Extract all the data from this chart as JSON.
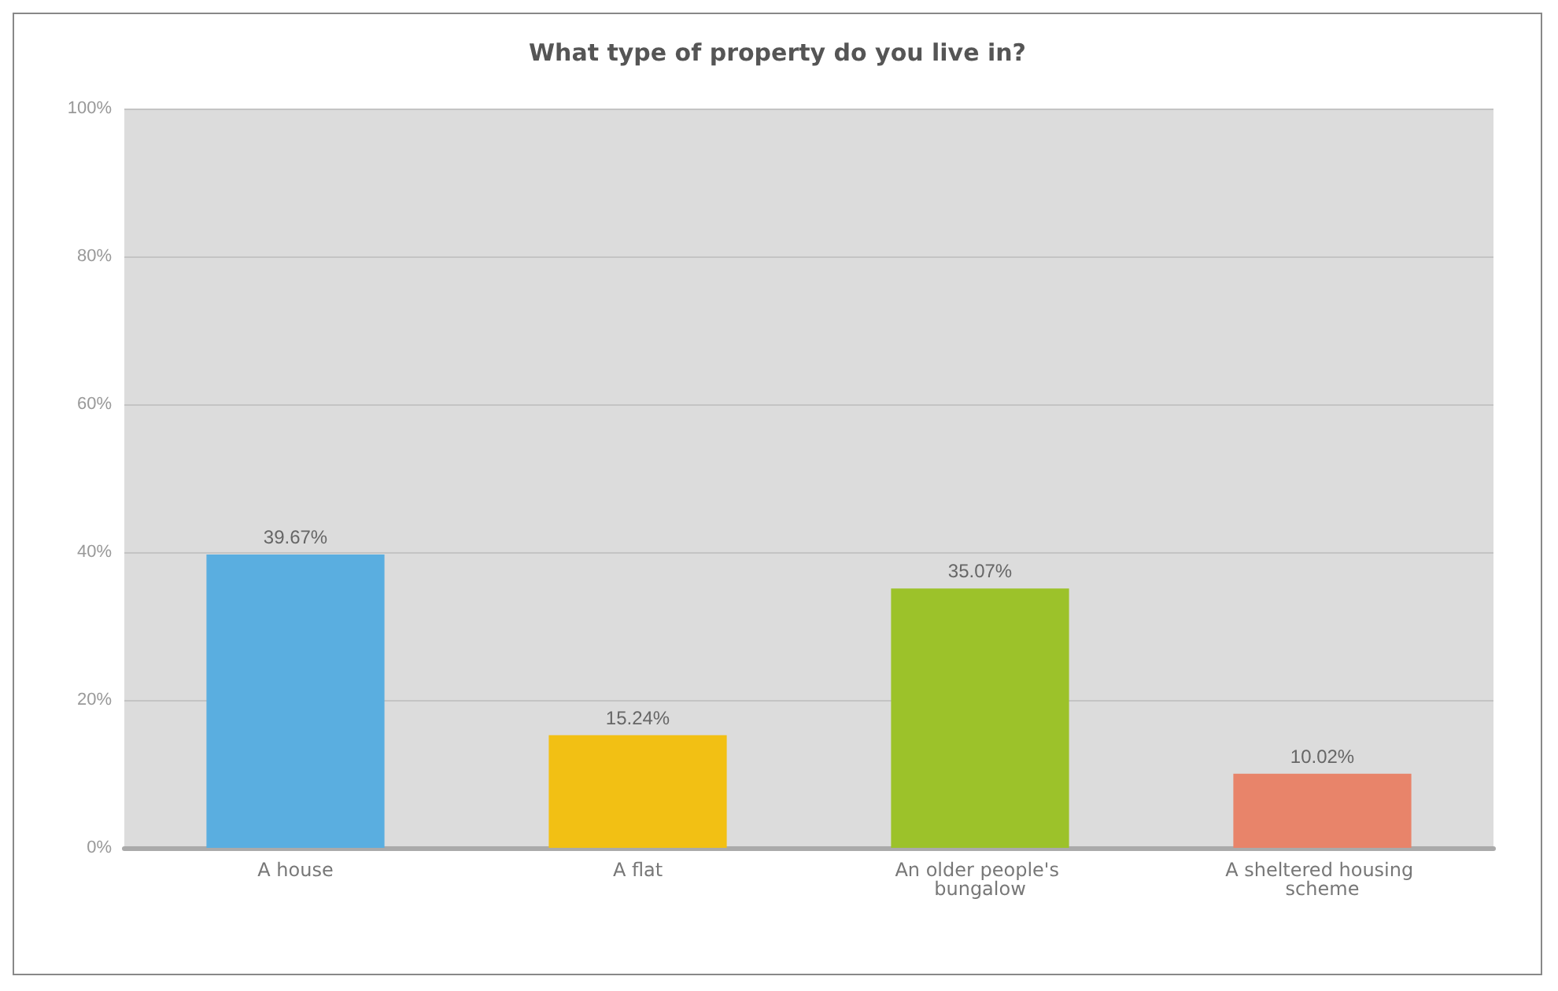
{
  "chart_data": {
    "type": "bar",
    "title": "What type of property do you live in?",
    "categories": [
      "A house",
      "A flat",
      "An older people's bungalow",
      "A sheltered housing scheme"
    ],
    "values": [
      39.67,
      15.24,
      35.07,
      10.02
    ],
    "colors": [
      "#5aaee0",
      "#f2c014",
      "#9cc22a",
      "#e8846a"
    ],
    "value_labels": [
      "39.67%",
      "15.24%",
      "35.07%",
      "10.02%"
    ],
    "ylim": [
      0,
      100
    ],
    "yticks": [
      {
        "value": 0,
        "label": "0%"
      },
      {
        "value": 20,
        "label": "20%"
      },
      {
        "value": 40,
        "label": "40%"
      },
      {
        "value": 60,
        "label": "60%"
      },
      {
        "value": 80,
        "label": "80%"
      },
      {
        "value": 100,
        "label": "100%"
      }
    ],
    "grid": "y"
  }
}
